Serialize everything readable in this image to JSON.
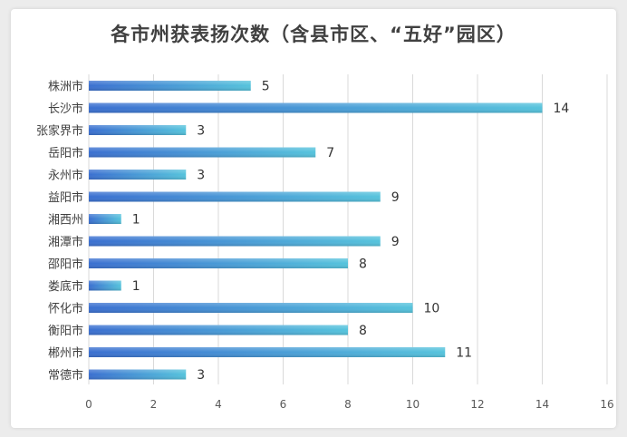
{
  "chart_data": {
    "type": "bar",
    "orientation": "horizontal",
    "title": "各市州获表扬次数（含县市区、“五好”园区）",
    "categories": [
      "株洲市",
      "长沙市",
      "张家界市",
      "岳阳市",
      "永州市",
      "益阳市",
      "湘西州",
      "湘潭市",
      "邵阳市",
      "娄底市",
      "怀化市",
      "衡阳市",
      "郴州市",
      "常德市"
    ],
    "values": [
      5,
      14,
      3,
      7,
      3,
      9,
      1,
      9,
      8,
      1,
      10,
      8,
      11,
      3
    ],
    "xlim": [
      0,
      16
    ],
    "xticks": [
      0,
      2,
      4,
      6,
      8,
      10,
      12,
      14,
      16
    ],
    "grid": true,
    "legend": "none",
    "colors": {
      "bar_start": "#3a6fd0",
      "bar_end": "#55c3dc",
      "grid": "#d9d9d9"
    }
  }
}
